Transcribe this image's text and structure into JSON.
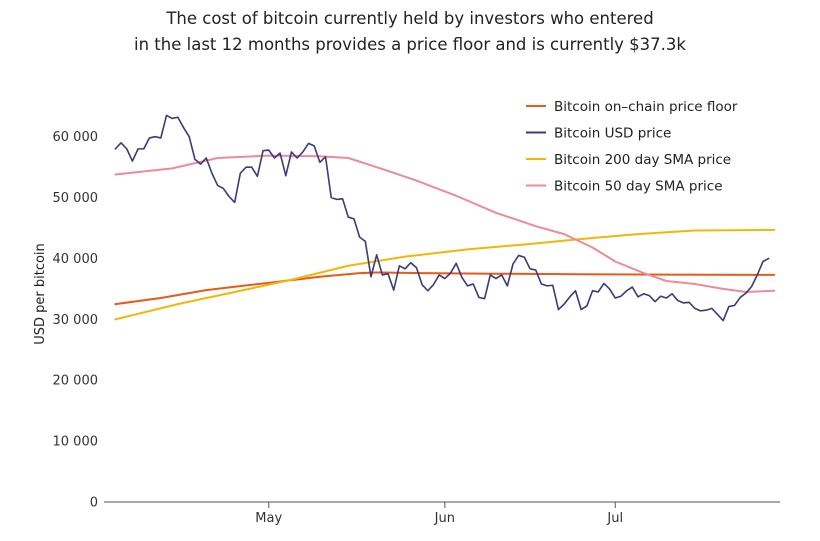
{
  "chart_data": {
    "type": "line",
    "title_line1": "The cost of bitcoin currently held by investors who entered",
    "title_line2": "in the last 12 months provides a price floor and is currently $37.3k",
    "xlabel": "",
    "ylabel": "USD per bitcoin",
    "x_tick_labels": [
      "May",
      "Jun",
      "Jul"
    ],
    "y_tick_labels": [
      "0",
      "10 000",
      "20 000",
      "30 000",
      "40 000",
      "50 000",
      "60 000"
    ],
    "y_ticks": [
      0,
      10000,
      20000,
      30000,
      40000,
      50000,
      60000
    ],
    "ylim": [
      0,
      68000
    ],
    "xlim": [
      "2021-04-02",
      "2021-07-30"
    ],
    "x_tick_dates": [
      "2021-05-01",
      "2021-06-01",
      "2021-07-01"
    ],
    "grid": false,
    "legend_position": "top-right",
    "series": [
      {
        "name": "Bitcoin on–chain price floor",
        "color": "#e8591a",
        "points": [
          [
            "2021-04-04",
            32500
          ],
          [
            "2021-04-12",
            33500
          ],
          [
            "2021-04-20",
            34800
          ],
          [
            "2021-05-01",
            36000
          ],
          [
            "2021-05-10",
            37000
          ],
          [
            "2021-05-17",
            37600
          ],
          [
            "2021-05-20",
            37700
          ],
          [
            "2021-05-28",
            37600
          ],
          [
            "2021-06-10",
            37500
          ],
          [
            "2021-06-25",
            37400
          ],
          [
            "2021-07-10",
            37350
          ],
          [
            "2021-07-29",
            37300
          ]
        ]
      },
      {
        "name": "Bitcoin USD price",
        "color": "#3b3a7c",
        "points": [
          [
            "2021-04-04",
            58000
          ],
          [
            "2021-04-05",
            59000
          ],
          [
            "2021-04-06",
            58000
          ],
          [
            "2021-04-07",
            56000
          ],
          [
            "2021-04-08",
            58000
          ],
          [
            "2021-04-09",
            58000
          ],
          [
            "2021-04-10",
            59800
          ],
          [
            "2021-04-11",
            60000
          ],
          [
            "2021-04-12",
            59800
          ],
          [
            "2021-04-13",
            63500
          ],
          [
            "2021-04-14",
            63000
          ],
          [
            "2021-04-15",
            63200
          ],
          [
            "2021-04-16",
            61500
          ],
          [
            "2021-04-17",
            60000
          ],
          [
            "2021-04-18",
            56300
          ],
          [
            "2021-04-19",
            55500
          ],
          [
            "2021-04-20",
            56500
          ],
          [
            "2021-04-21",
            54000
          ],
          [
            "2021-04-22",
            52000
          ],
          [
            "2021-04-23",
            51500
          ],
          [
            "2021-04-24",
            50200
          ],
          [
            "2021-04-25",
            49200
          ],
          [
            "2021-04-26",
            54000
          ],
          [
            "2021-04-27",
            55000
          ],
          [
            "2021-04-28",
            55000
          ],
          [
            "2021-04-29",
            53500
          ],
          [
            "2021-04-30",
            57700
          ],
          [
            "2021-05-01",
            57800
          ],
          [
            "2021-05-02",
            56500
          ],
          [
            "2021-05-03",
            57300
          ],
          [
            "2021-05-04",
            53600
          ],
          [
            "2021-05-05",
            57500
          ],
          [
            "2021-05-06",
            56500
          ],
          [
            "2021-05-07",
            57500
          ],
          [
            "2021-05-08",
            58900
          ],
          [
            "2021-05-09",
            58500
          ],
          [
            "2021-05-10",
            55800
          ],
          [
            "2021-05-11",
            56700
          ],
          [
            "2021-05-12",
            50000
          ],
          [
            "2021-05-13",
            49700
          ],
          [
            "2021-05-14",
            49800
          ],
          [
            "2021-05-15",
            46800
          ],
          [
            "2021-05-16",
            46500
          ],
          [
            "2021-05-17",
            43500
          ],
          [
            "2021-05-18",
            42800
          ],
          [
            "2021-05-19",
            37000
          ],
          [
            "2021-05-20",
            40600
          ],
          [
            "2021-05-21",
            37300
          ],
          [
            "2021-05-22",
            37500
          ],
          [
            "2021-05-23",
            34800
          ],
          [
            "2021-05-24",
            38800
          ],
          [
            "2021-05-25",
            38300
          ],
          [
            "2021-05-26",
            39300
          ],
          [
            "2021-05-27",
            38500
          ],
          [
            "2021-05-28",
            35700
          ],
          [
            "2021-05-29",
            34700
          ],
          [
            "2021-05-30",
            35700
          ],
          [
            "2021-05-31",
            37300
          ],
          [
            "2021-06-01",
            36700
          ],
          [
            "2021-06-02",
            37600
          ],
          [
            "2021-06-03",
            39200
          ],
          [
            "2021-06-04",
            36900
          ],
          [
            "2021-06-05",
            35500
          ],
          [
            "2021-06-06",
            35800
          ],
          [
            "2021-06-07",
            33600
          ],
          [
            "2021-06-08",
            33400
          ],
          [
            "2021-06-09",
            37300
          ],
          [
            "2021-06-10",
            36700
          ],
          [
            "2021-06-11",
            37300
          ],
          [
            "2021-06-12",
            35500
          ],
          [
            "2021-06-13",
            39100
          ],
          [
            "2021-06-14",
            40500
          ],
          [
            "2021-06-15",
            40200
          ],
          [
            "2021-06-16",
            38300
          ],
          [
            "2021-06-17",
            38100
          ],
          [
            "2021-06-18",
            35800
          ],
          [
            "2021-06-19",
            35500
          ],
          [
            "2021-06-20",
            35600
          ],
          [
            "2021-06-21",
            31600
          ],
          [
            "2021-06-22",
            32500
          ],
          [
            "2021-06-23",
            33700
          ],
          [
            "2021-06-24",
            34700
          ],
          [
            "2021-06-25",
            31600
          ],
          [
            "2021-06-26",
            32200
          ],
          [
            "2021-06-27",
            34700
          ],
          [
            "2021-06-28",
            34500
          ],
          [
            "2021-06-29",
            35900
          ],
          [
            "2021-06-30",
            35000
          ],
          [
            "2021-07-01",
            33500
          ],
          [
            "2021-07-02",
            33800
          ],
          [
            "2021-07-03",
            34700
          ],
          [
            "2021-07-04",
            35300
          ],
          [
            "2021-07-05",
            33700
          ],
          [
            "2021-07-06",
            34200
          ],
          [
            "2021-07-07",
            33900
          ],
          [
            "2021-07-08",
            32900
          ],
          [
            "2021-07-09",
            33800
          ],
          [
            "2021-07-10",
            33500
          ],
          [
            "2021-07-11",
            34200
          ],
          [
            "2021-07-12",
            33100
          ],
          [
            "2021-07-13",
            32700
          ],
          [
            "2021-07-14",
            32800
          ],
          [
            "2021-07-15",
            31800
          ],
          [
            "2021-07-16",
            31400
          ],
          [
            "2021-07-17",
            31500
          ],
          [
            "2021-07-18",
            31800
          ],
          [
            "2021-07-19",
            30800
          ],
          [
            "2021-07-20",
            29800
          ],
          [
            "2021-07-21",
            32100
          ],
          [
            "2021-07-22",
            32300
          ],
          [
            "2021-07-23",
            33600
          ],
          [
            "2021-07-24",
            34300
          ],
          [
            "2021-07-25",
            35400
          ],
          [
            "2021-07-26",
            37300
          ],
          [
            "2021-07-27",
            39500
          ],
          [
            "2021-07-28",
            40000
          ]
        ]
      },
      {
        "name": "Bitcoin 200 day SMA price",
        "color": "#f2b705",
        "points": [
          [
            "2021-04-04",
            30000
          ],
          [
            "2021-04-15",
            32500
          ],
          [
            "2021-04-25",
            34500
          ],
          [
            "2021-05-05",
            36500
          ],
          [
            "2021-05-15",
            38800
          ],
          [
            "2021-05-25",
            40300
          ],
          [
            "2021-06-05",
            41500
          ],
          [
            "2021-06-15",
            42300
          ],
          [
            "2021-06-25",
            43200
          ],
          [
            "2021-07-05",
            44000
          ],
          [
            "2021-07-15",
            44600
          ],
          [
            "2021-07-29",
            44700
          ]
        ]
      },
      {
        "name": "Bitcoin 50 day SMA price",
        "color": "#ef8a96",
        "points": [
          [
            "2021-04-04",
            53800
          ],
          [
            "2021-04-14",
            54800
          ],
          [
            "2021-04-22",
            56500
          ],
          [
            "2021-05-01",
            56900
          ],
          [
            "2021-05-10",
            56800
          ],
          [
            "2021-05-15",
            56500
          ],
          [
            "2021-05-20",
            55000
          ],
          [
            "2021-05-27",
            52800
          ],
          [
            "2021-06-03",
            50300
          ],
          [
            "2021-06-10",
            47500
          ],
          [
            "2021-06-17",
            45300
          ],
          [
            "2021-06-22",
            44000
          ],
          [
            "2021-06-27",
            41800
          ],
          [
            "2021-07-01",
            39500
          ],
          [
            "2021-07-06",
            37600
          ],
          [
            "2021-07-10",
            36300
          ],
          [
            "2021-07-15",
            35800
          ],
          [
            "2021-07-20",
            35000
          ],
          [
            "2021-07-24",
            34500
          ],
          [
            "2021-07-29",
            34700
          ]
        ]
      }
    ]
  }
}
